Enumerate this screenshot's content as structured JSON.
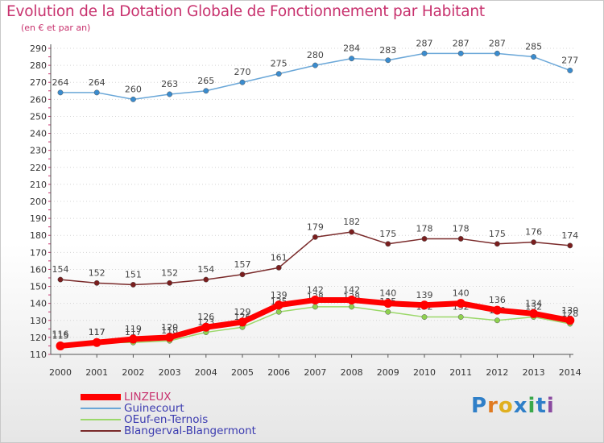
{
  "chart_data": {
    "type": "line",
    "title": "Evolution de la Dotation Globale de Fonctionnement par Habitant",
    "subtitle": "(en € et par an)",
    "x": [
      "2000",
      "2001",
      "2002",
      "2003",
      "2004",
      "2005",
      "2006",
      "2007",
      "2008",
      "2009",
      "2010",
      "2011",
      "2012",
      "2013",
      "2014"
    ],
    "ylim": [
      110,
      290
    ],
    "yticks": [
      110,
      120,
      130,
      140,
      150,
      160,
      170,
      180,
      190,
      200,
      210,
      220,
      230,
      240,
      250,
      260,
      270,
      280,
      290
    ],
    "grid": "horizontal",
    "legend_position": "bottom-left",
    "series": [
      {
        "name": "Guinecourt",
        "color": "#6aa7d8",
        "marker": "#3a8ccf",
        "values": [
          264,
          264,
          260,
          263,
          265,
          270,
          275,
          280,
          284,
          283,
          287,
          287,
          287,
          285,
          277
        ]
      },
      {
        "name": "Blangerval-Blangermont",
        "color": "#7a2a2a",
        "marker": "#7a1e1e",
        "values": [
          154,
          152,
          151,
          152,
          154,
          157,
          161,
          179,
          182,
          175,
          178,
          178,
          175,
          176,
          174
        ]
      },
      {
        "name": "OEuf-en-Ternois",
        "color": "#9bd86a",
        "marker": "#8fd14f",
        "values": [
          116,
          117,
          117,
          118,
          123,
          126,
          135,
          138,
          138,
          135,
          132,
          132,
          130,
          132,
          128
        ]
      },
      {
        "name": "LINZEUX",
        "color": "#ff0000",
        "marker": "#ff0000",
        "values": [
          115,
          117,
          119,
          120,
          126,
          129,
          139,
          142,
          142,
          140,
          139,
          140,
          136,
          134,
          130
        ]
      }
    ],
    "legend_order": [
      "LINZEUX",
      "Guinecourt",
      "OEuf-en-Ternois",
      "Blangerval-Blangermont"
    ]
  },
  "logo": {
    "text": "Proxiti",
    "colors": [
      "#2f7fc8",
      "#e07a20",
      "#e0b020",
      "#2f7fc8",
      "#3aa84a",
      "#2f7fc8",
      "#8a4aa0"
    ]
  }
}
